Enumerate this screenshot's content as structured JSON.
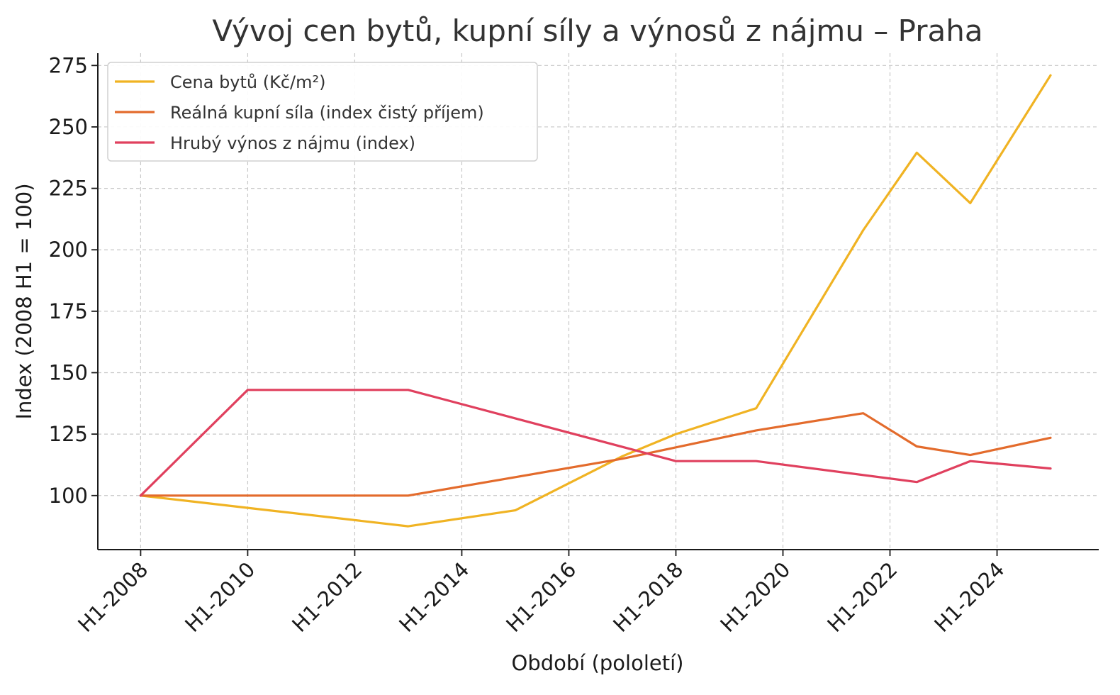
{
  "chart_data": {
    "type": "line",
    "title": "Vývoj cen bytů, kupní síly a výnosů z nájmu – Praha",
    "xlabel": "Období (pololetí)",
    "ylabel": "Index (2008 H1 = 100)",
    "x_ticks": [
      "H1-2008",
      "H1-2010",
      "H1-2012",
      "H1-2014",
      "H1-2016",
      "H1-2018",
      "H1-2020",
      "H1-2022",
      "H1-2024"
    ],
    "y_ticks": [
      100,
      125,
      150,
      175,
      200,
      225,
      250,
      275
    ],
    "xlim": [
      2007.2,
      2025.9
    ],
    "ylim": [
      78,
      280
    ],
    "grid": true,
    "legend_position": "top-left",
    "series": [
      {
        "name": "Cena bytů (Kč/m²)",
        "color": "#f0b323",
        "x": [
          2008,
          2010,
          2013,
          2015,
          2017,
          2018,
          2019.5,
          2021.5,
          2022.5,
          2023.5,
          2025
        ],
        "y": [
          100,
          95,
          87.5,
          94,
          116,
          125,
          135.5,
          208,
          239.5,
          219,
          271
        ]
      },
      {
        "name": "Reálná kupní síla (index čistý příjem)",
        "color": "#e36b2c",
        "x": [
          2008,
          2013,
          2015,
          2017,
          2019.5,
          2021.5,
          2022.5,
          2023.5,
          2025
        ],
        "y": [
          100,
          100,
          107.5,
          115,
          126.5,
          133.5,
          120,
          116.5,
          123.5
        ]
      },
      {
        "name": "Hrubý výnos z nájmu (index)",
        "color": "#e0405e",
        "x": [
          2008,
          2010,
          2013,
          2018,
          2019.5,
          2022.5,
          2023.5,
          2025
        ],
        "y": [
          100,
          143,
          143,
          114,
          114,
          105.5,
          114,
          111
        ]
      }
    ]
  }
}
